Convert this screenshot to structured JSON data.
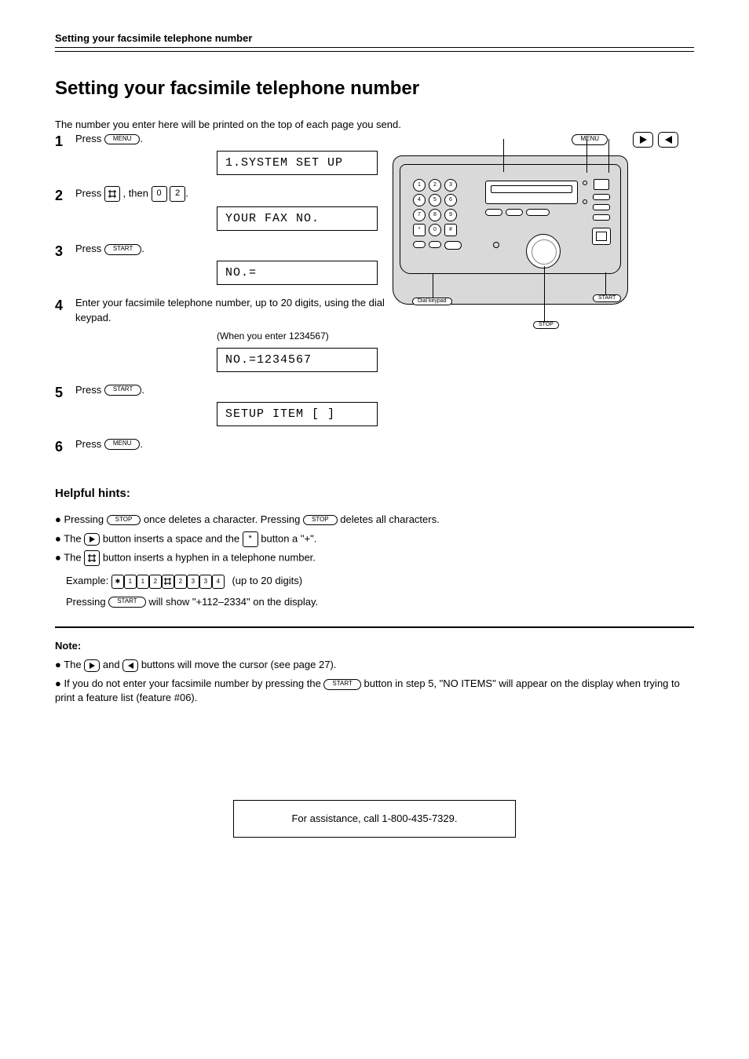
{
  "header": {
    "title": "Setting your facsimile telephone number"
  },
  "h1": "Setting your facsimile telephone number",
  "intro": "The number you enter here will be printed on the top of each page you send.",
  "steps": {
    "s1": {
      "num": "1",
      "text_before": "Press ",
      "btn": "MENU",
      "text_after": "."
    },
    "s2": {
      "num": "2",
      "text_before": "Press ",
      "key1": "#",
      "text_mid": ", then ",
      "key2a": "0",
      "key2b": "2",
      "text_after": "."
    },
    "s3": {
      "num": "3",
      "text_before": "Press ",
      "btn": "START",
      "text_after": "."
    },
    "s4": {
      "num": "4",
      "text_before": "Enter your facsimile telephone number, up to 20 digits, using the dial keypad.",
      "disp_note": "(When you enter 1234567)"
    },
    "s5": {
      "num": "5",
      "text_before": "Press ",
      "btn": "START",
      "text_after": "."
    },
    "s6": {
      "num": "6",
      "text_before": "Press ",
      "btn": "MENU",
      "text_after": "."
    }
  },
  "displays": {
    "d1": "1.SYSTEM SET UP",
    "d2": "YOUR FAX NO.",
    "d3": "NO.=",
    "d4": "NO.=1234567",
    "d5": "SETUP ITEM [  ]"
  },
  "device_labels": {
    "menu": "MENU",
    "arrows_caption": "",
    "dial": "Dial keypad",
    "stop": "STOP",
    "start": "START"
  },
  "helpful": {
    "title": "Helpful hints:",
    "h1_a": "Pressing ",
    "h1_b": " once deletes a character. Pressing ",
    "h1_c": " deletes all characters.",
    "h1_stop": "STOP",
    "h2_a": "The ",
    "h2_b": " button inserts a space and the ",
    "h2_c": " button a \"+\".",
    "h3_a": "The ",
    "h3_b": " button inserts a hyphen in a telephone number.",
    "example_label": "Example:",
    "example_keys": [
      "*",
      "1",
      "1",
      "2",
      "#",
      "2",
      "3",
      "3",
      "4"
    ],
    "example_note": "(up to 20 digits)",
    "result_a": "Pressing ",
    "result_btn": "START",
    "result_b": " will show \"+112–2334\" on the display."
  },
  "note": {
    "title": "Note:",
    "line1_a": "The ",
    "line1_b": " and ",
    "line1_c": " buttons will move the cursor (see page 27).",
    "line2_a": "If you do not enter your facsimile number by pressing the ",
    "line2_btn": "START",
    "line2_b": " button in step 5, \"NO ITEMS\" will appear on the display when trying to print a feature list (feature #06)."
  },
  "footer": {
    "text": "For assistance, call 1-800-435-7329."
  }
}
